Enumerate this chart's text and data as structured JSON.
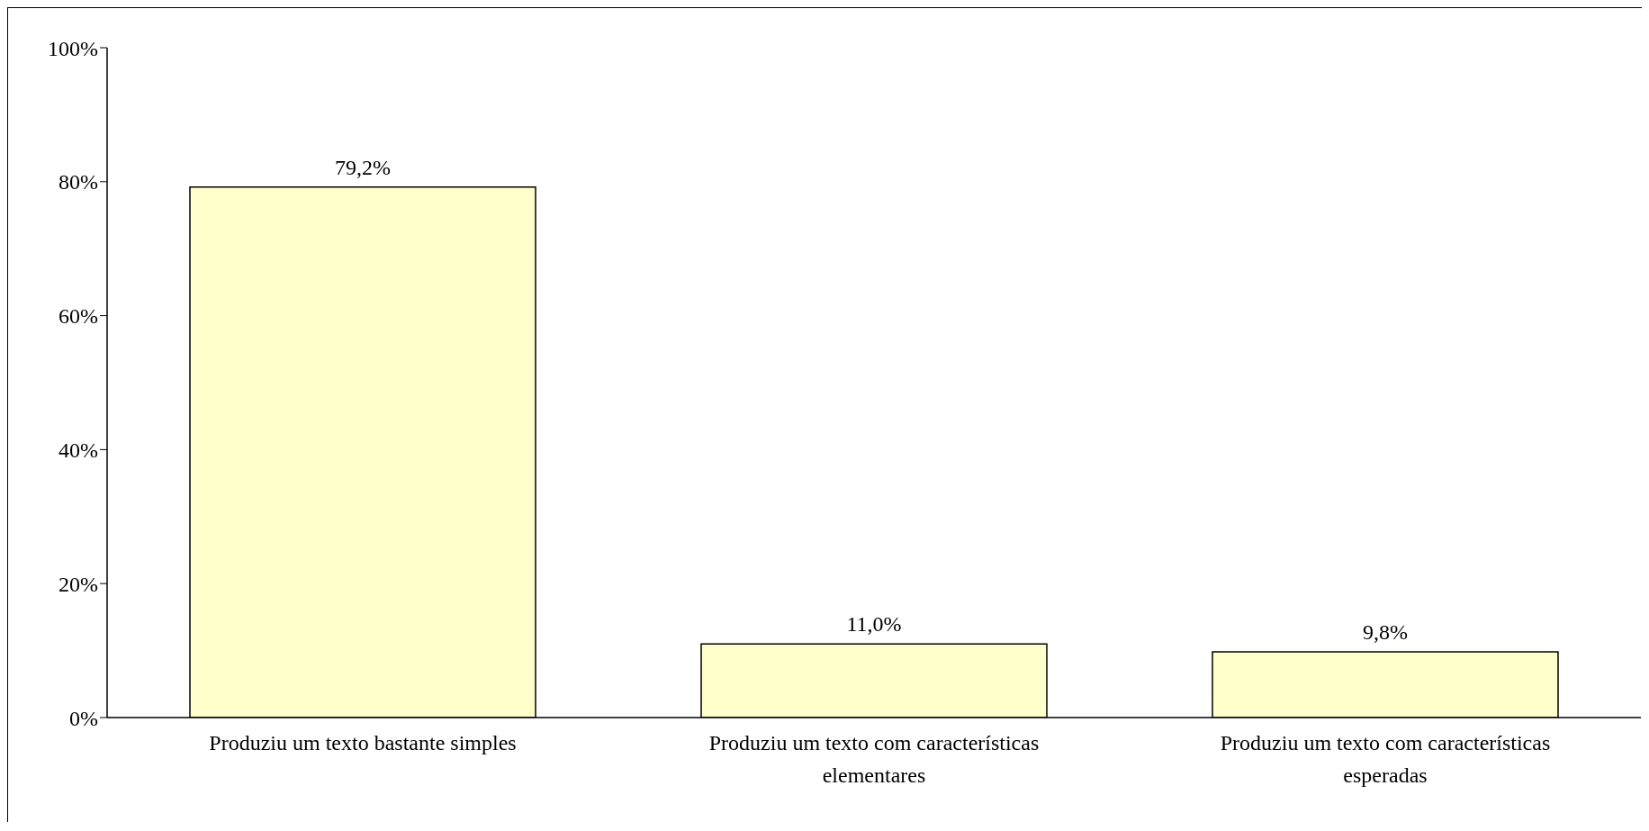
{
  "chart_data": {
    "type": "bar",
    "categories": [
      "Produziu um texto bastante simples",
      "Produziu um texto com características elementares",
      "Produziu um texto com características esperadas"
    ],
    "values": [
      79.2,
      11.0,
      9.8
    ],
    "value_labels": [
      "79,2%",
      "11,0%",
      "9,8%"
    ],
    "color": "#ffffcc",
    "ylim": [
      0,
      100
    ],
    "yticks": [
      {
        "value": 0,
        "label": "0%"
      },
      {
        "value": 20,
        "label": "20%"
      },
      {
        "value": 40,
        "label": "40%"
      },
      {
        "value": 60,
        "label": "60%"
      },
      {
        "value": 80,
        "label": "80%"
      },
      {
        "value": 100,
        "label": "100%"
      }
    ],
    "grid": false,
    "legend": false
  }
}
